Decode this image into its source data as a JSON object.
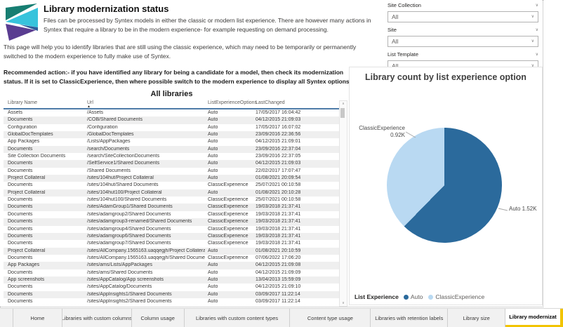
{
  "header": {
    "title": "Library modernization status",
    "intro": "Files can be processed by Syntex models in either the classic or modern list experience. There are however many actions in Syntex that require a library to be in the modern experience- for example requesting on demand processing.",
    "page_help": "This page will help you to identify libraries that are still using the classic experience, which may need to be temporarily or permanently switched to the modern experience to fully make use of Syntex.",
    "recommendation": "Recommended action:- if you have identified any library for being a candidate for a model, then check its modernization status. If it is set to ClassicExperience, then where possible switch to the modern experience to display all Syntex options."
  },
  "filters": {
    "slicers": [
      {
        "label": "Site Collection",
        "value": "All"
      },
      {
        "label": "Site",
        "value": "All"
      },
      {
        "label": "List Template",
        "value": "All"
      }
    ]
  },
  "table": {
    "title": "All libraries",
    "columns": [
      "Library Name",
      "Url",
      "ListExperienceOptions",
      "LastChanged"
    ],
    "sorted_by": "Url",
    "sort_direction": "asc",
    "rows": [
      [
        "Assets",
        "/Assets",
        "Auto",
        "17/05/2017 16:04:42"
      ],
      [
        "Documents",
        "/COB/Shared Documents",
        "Auto",
        "04/12/2015 21:09:03"
      ],
      [
        "Configuration",
        "/Configuration",
        "Auto",
        "17/05/2017 16:07:02"
      ],
      [
        "GlobalDocTemplates",
        "/GlobalDocTemplates",
        "Auto",
        "23/09/2016 22:36:56"
      ],
      [
        "App Packages",
        "/Lists/AppPackages",
        "Auto",
        "04/12/2015 21:09:01"
      ],
      [
        "Documents",
        "/search/Documents",
        "Auto",
        "23/09/2016 22:37:04"
      ],
      [
        "Site Collection Documents",
        "/search/SiteCollectionDocuments",
        "Auto",
        "23/09/2016 22:37:05"
      ],
      [
        "Documents",
        "/SelfService1/Shared Documents",
        "Auto",
        "04/12/2015 21:09:03"
      ],
      [
        "Documents",
        "/Shared Documents",
        "Auto",
        "22/02/2017 17:07:47"
      ],
      [
        "Project Collateral",
        "/sites/104hut/Project Collateral",
        "Auto",
        "01/08/2021 20:09:54"
      ],
      [
        "Documents",
        "/sites/104hut/Shared Documents",
        "ClassicExperience",
        "25/07/2021 00:10:58"
      ],
      [
        "Project Collateral",
        "/sites/104hut100/Project Collateral",
        "Auto",
        "01/08/2021 20:10:28"
      ],
      [
        "Documents",
        "/sites/104hut100/Shared Documents",
        "ClassicExperience",
        "25/07/2021 00:10:58"
      ],
      [
        "Documents",
        "/sites/AdamGroup1/Shared Documents",
        "ClassicExperience",
        "19/03/2018 21:37:41"
      ],
      [
        "Documents",
        "/sites/adamgroup2/Shared Documents",
        "ClassicExperience",
        "19/03/2018 21:37:41"
      ],
      [
        "Documents",
        "/sites/adamgroup3-renamed/Shared Documents",
        "ClassicExperience",
        "19/03/2018 21:37:41"
      ],
      [
        "Documents",
        "/sites/adamgroup4/Shared Documents",
        "ClassicExperience",
        "19/03/2018 21:37:41"
      ],
      [
        "Documents",
        "/sites/adamgroup6/Shared Documents",
        "ClassicExperience",
        "19/03/2018 21:37:41"
      ],
      [
        "Documents",
        "/sites/adamgroup7/Shared Documents",
        "ClassicExperience",
        "19/03/2018 21:37:41"
      ],
      [
        "Project Collateral",
        "/sites/AllCompany.1565163.uaqqegjh/Project Collateral",
        "Auto",
        "01/08/2021 20:10:59"
      ],
      [
        "Documents",
        "/sites/AllCompany.1565163.uaqqegjh/Shared Documents",
        "ClassicExperience",
        "07/06/2022 17:06:20"
      ],
      [
        "App Packages",
        "/sites/ams/Lists/AppPackages",
        "Auto",
        "04/12/2015 21:09:08"
      ],
      [
        "Documents",
        "/sites/ams/Shared Documents",
        "Auto",
        "04/12/2015 21:09:09"
      ],
      [
        "App screenshots",
        "/sites/AppCatalog/App screenshots",
        "Auto",
        "13/04/2013 15:59:09"
      ],
      [
        "Documents",
        "/sites/AppCatalog/Documents",
        "Auto",
        "04/12/2015 21:09:10"
      ],
      [
        "Documents",
        "/sites/AppInsights1/Shared Documents",
        "Auto",
        "03/09/2017 11:22:14"
      ],
      [
        "Documents",
        "/sites/AppInsights2/Shared Documents",
        "Auto",
        "03/09/2017 11:22:14"
      ]
    ]
  },
  "chart_data": {
    "type": "pie",
    "title": "Library count by list experience option",
    "legend_title": "List Experience",
    "legend_position": "bottom-left",
    "start_angle_deg": 0,
    "direction": "clockwise",
    "slices": [
      {
        "label": "Auto",
        "value": 1520,
        "display_value": "1.52K",
        "color": "#2b6a9c"
      },
      {
        "label": "ClassicExperience",
        "value": 920,
        "display_value": "0.92K",
        "color": "#b9d9f2"
      }
    ]
  },
  "tabs": {
    "items": [
      "Home",
      "Libraries with custom columns",
      "Column usage",
      "Libraries with custom content types",
      "Content type usage",
      "Libraries with retention labels",
      "Library size",
      "Library modernizat"
    ],
    "active_index": 7
  },
  "colors": {
    "accent_yellow": "#f2c400",
    "table_header_rule": "#4e7ca8",
    "pie_dark": "#2b6a9c",
    "pie_light": "#b9d9f2"
  }
}
